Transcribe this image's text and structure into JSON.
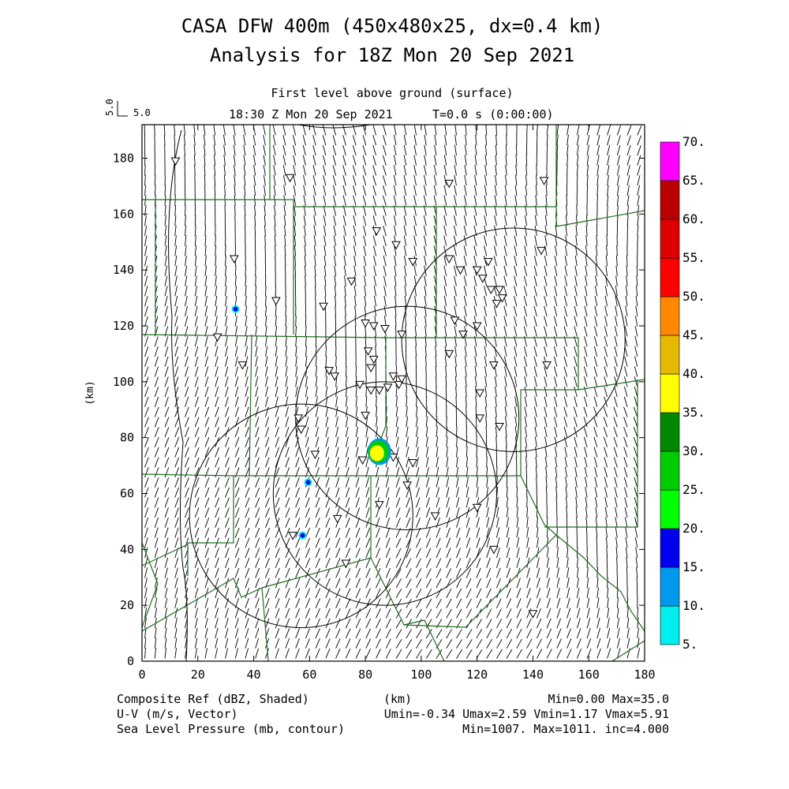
{
  "header": {
    "title_line1": "CASA DFW 400m (450x480x25, dx=0.4 km)",
    "title_line2": "Analysis for 18Z Mon 20 Sep 2021",
    "level": "First level above ground (surface)",
    "time": "18:30 Z Mon 20 Sep 2021",
    "timestep": "T=0.0 s (0:00:00)"
  },
  "vector_ref": {
    "rotated_label": "5.0",
    "label": "5.0"
  },
  "footer": {
    "line1_left": "Composite Ref (dBZ, Shaded)",
    "line1_mid": "(km)",
    "line1_right": "Min=0.00 Max=35.0",
    "line2_left": "U-V (m/s, Vector)",
    "line2_right": "Umin=-0.34 Umax=2.59 Vmin=1.17 Vmax=5.91",
    "line3_left": "Sea Level Pressure (mb, contour)",
    "line3_right": "Min=1007. Max=1011. inc=4.000"
  },
  "colors": {
    "boundary": "#1f6e1f",
    "contour": "#000000",
    "radar": "#000000"
  },
  "chart_data": {
    "type": "heatmap",
    "xlabel": "(km)",
    "ylabel": "(km)",
    "xlim": [
      0,
      180
    ],
    "ylim": [
      0,
      192
    ],
    "xticks": [
      0,
      20,
      40,
      60,
      80,
      100,
      120,
      140,
      160,
      180
    ],
    "yticks": [
      0,
      20,
      40,
      60,
      80,
      100,
      120,
      140,
      160,
      180
    ],
    "reflectivity_echoes": [
      {
        "x": 85,
        "y": 75,
        "dbz": 35
      },
      {
        "x": 33.5,
        "y": 126,
        "dbz": 15
      },
      {
        "x": 59.5,
        "y": 64,
        "dbz": 15
      },
      {
        "x": 57.5,
        "y": 45,
        "dbz": 15
      }
    ],
    "radar_coverage_circles_km": [
      {
        "x": 133,
        "y": 115,
        "r": 40
      },
      {
        "x": 95,
        "y": 87,
        "r": 40
      },
      {
        "x": 57,
        "y": 52,
        "r": 40
      },
      {
        "x": 87,
        "y": 60,
        "r": 40
      }
    ],
    "colorbar": {
      "label_unit": "dBZ",
      "levels": [
        "5.",
        "10.",
        "15.",
        "20.",
        "25.",
        "30.",
        "35.",
        "40.",
        "45.",
        "50.",
        "55.",
        "60.",
        "65.",
        "70."
      ],
      "colors": [
        "#00eeee",
        "#0099ee",
        "#0000ee",
        "#00ff00",
        "#00cc00",
        "#008800",
        "#ffff00",
        "#e6b800",
        "#ff8800",
        "#ff0000",
        "#dd0000",
        "#bb0000",
        "#ff00ff"
      ]
    },
    "wind": {
      "u_range": [
        -0.34,
        2.59
      ],
      "v_range": [
        1.17,
        5.91
      ],
      "reference_vector_ms": 5.0
    },
    "slp": {
      "min": 1007,
      "max": 1011,
      "inc": 4.0
    }
  }
}
